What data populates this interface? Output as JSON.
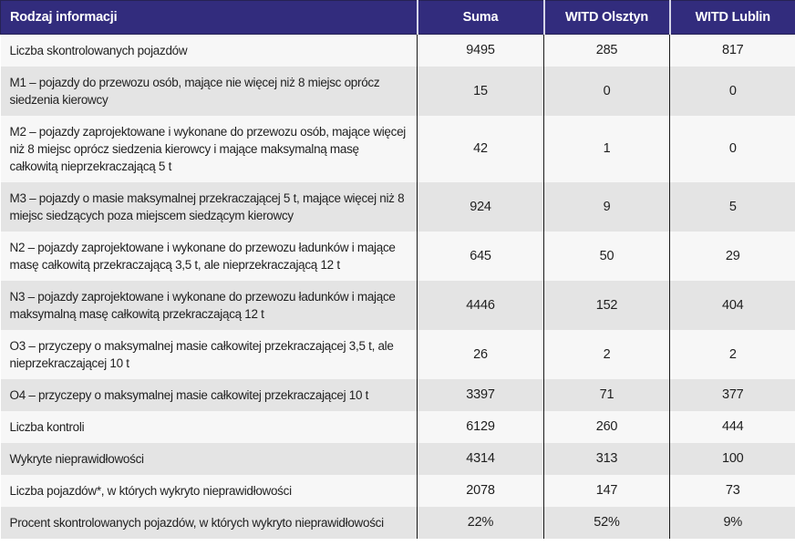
{
  "table": {
    "columns": [
      "Rodzaj informacji",
      "Suma",
      "WITD Olsztyn",
      "WITD Lublin"
    ],
    "rows": [
      {
        "label": "Liczba skontrolowanych pojazdów",
        "values": [
          "9495",
          "285",
          "817"
        ]
      },
      {
        "label": "M1 – pojazdy do przewozu osób, mające nie więcej niż 8 miejsc oprócz siedzenia kierowcy",
        "values": [
          "15",
          "0",
          "0"
        ]
      },
      {
        "label": "M2 – pojazdy zaprojektowane i wykonane do przewozu osób, mające więcej niż 8 miejsc oprócz siedzenia kierowcy i mające maksymalną masę całkowitą nieprzekraczającą 5 t",
        "values": [
          "42",
          "1",
          "0"
        ]
      },
      {
        "label": "M3 – pojazdy o masie maksymalnej przekraczającej 5 t, mające więcej niż 8 miejsc siedzących poza miejscem siedzącym kierowcy",
        "values": [
          "924",
          "9",
          "5"
        ]
      },
      {
        "label": "N2 – pojazdy zaprojektowane i wykonane do przewozu ładunków i mające masę całkowitą przekraczającą 3,5 t, ale nieprzekraczającą 12 t",
        "values": [
          "645",
          "50",
          "29"
        ]
      },
      {
        "label": "N3 – pojazdy zaprojektowane i wykonane do przewozu ładunków i mające maksymalną masę całkowitą przekraczającą 12 t",
        "values": [
          "4446",
          "152",
          "404"
        ]
      },
      {
        "label": "O3 – przyczepy o maksymalnej masie całkowitej przekraczającej 3,5 t, ale nieprzekraczającej 10 t",
        "values": [
          "26",
          "2",
          "2"
        ]
      },
      {
        "label": "O4 – przyczepy o maksymalnej masie całkowitej przekraczającej 10 t",
        "values": [
          "3397",
          "71",
          "377"
        ]
      },
      {
        "label": "Liczba kontroli",
        "values": [
          "6129",
          "260",
          "444"
        ]
      },
      {
        "label": "Wykryte nieprawidłowości",
        "values": [
          "4314",
          "313",
          "100"
        ]
      },
      {
        "label": "Liczba pojazdów*, w których wykryto nieprawidłowości",
        "values": [
          "2078",
          "147",
          "73"
        ]
      },
      {
        "label": "Procent skontrolowanych pojazdów, w których wykryto nieprawidłowości",
        "values": [
          "22%",
          "52%",
          "9%"
        ]
      }
    ]
  },
  "colors": {
    "header_bg": "#322c7d",
    "header_text": "#ffffff",
    "header_divider": "#d5d5e8",
    "header_edge": "#262254",
    "row_light": "#f7f7f7",
    "row_dark": "#e4e4e4",
    "column_line": "#1a1a1a",
    "body_text": "#1f1f1f"
  }
}
